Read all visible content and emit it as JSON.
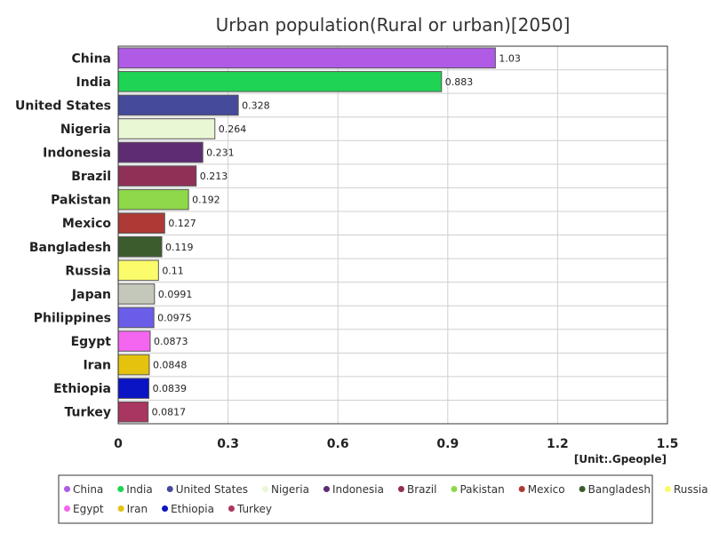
{
  "chart_data": {
    "type": "bar",
    "orientation": "horizontal",
    "title": "Urban population(Rural or urban)[2050]",
    "unit": "[Unit:.Gpeople]",
    "xlim": [
      0,
      1.5
    ],
    "xticks": [
      "0",
      "0.3",
      "0.6",
      "0.9",
      "1.2",
      "1.5"
    ],
    "xtick_values": [
      0,
      0.3,
      0.6,
      0.9,
      1.2,
      1.5
    ],
    "grid": true,
    "legend_position": "bottom",
    "categories": [
      "China",
      "India",
      "United States",
      "Nigeria",
      "Indonesia",
      "Brazil",
      "Pakistan",
      "Mexico",
      "Bangladesh",
      "Russia",
      "Japan",
      "Philippines",
      "Egypt",
      "Iran",
      "Ethiopia",
      "Turkey"
    ],
    "values": [
      1.03,
      0.883,
      0.328,
      0.264,
      0.231,
      0.213,
      0.192,
      0.127,
      0.119,
      0.11,
      0.0991,
      0.0975,
      0.0873,
      0.0848,
      0.0839,
      0.0817
    ],
    "value_labels": [
      "1.03",
      "0.883",
      "0.328",
      "0.264",
      "0.231",
      "0.213",
      "0.192",
      "0.127",
      "0.119",
      "0.11",
      "0.0991",
      "0.0975",
      "0.0873",
      "0.0848",
      "0.0839",
      "0.0817"
    ],
    "colors": [
      "#b05be6",
      "#1fd454",
      "#454a9a",
      "#eaf7d5",
      "#5e2c73",
      "#913056",
      "#8ed84a",
      "#ad3a35",
      "#3c5c2e",
      "#fbfb6b",
      "#c4c8bb",
      "#6a5de8",
      "#f466ef",
      "#e4c20d",
      "#0a14c4",
      "#a93660"
    ]
  }
}
